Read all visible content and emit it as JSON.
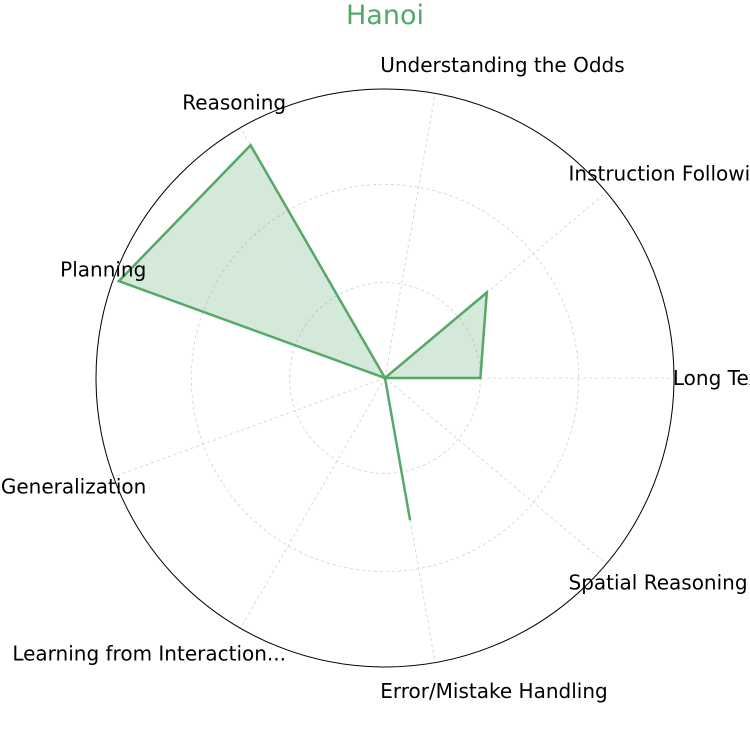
{
  "chart_data": {
    "type": "radar",
    "title": "Hanoi",
    "categories": [
      "Long Text Understanding",
      "Understanding the Odds",
      "Reasoning",
      "Planning",
      "Generalization",
      "Learning from Interaction...",
      "Error/Mistake Handling",
      "Spatial Reasoning",
      "Instruction Following"
    ],
    "visible_labels": [
      "Long Text Underst",
      "Understanding the Odds",
      "Reasoning",
      "Planning",
      "Generalization",
      "Learning from Interaction...",
      "Error/Mistake Handling",
      "Spatial Reasoning",
      "Instruction Following"
    ],
    "axis_angles_deg": [
      0,
      80,
      120,
      160,
      200,
      240,
      280,
      320,
      40
    ],
    "series": [
      {
        "values": [
          0.33,
          0,
          0.93,
          0.98,
          0,
          0,
          0.5,
          0,
          0.46
        ]
      }
    ],
    "rlim": [
      0,
      1
    ],
    "rings": [
      0.33,
      0.67,
      1.0
    ],
    "grid": true,
    "colors": {
      "line": "#55a868",
      "fill": "#55a868",
      "title": "#55a868"
    }
  }
}
